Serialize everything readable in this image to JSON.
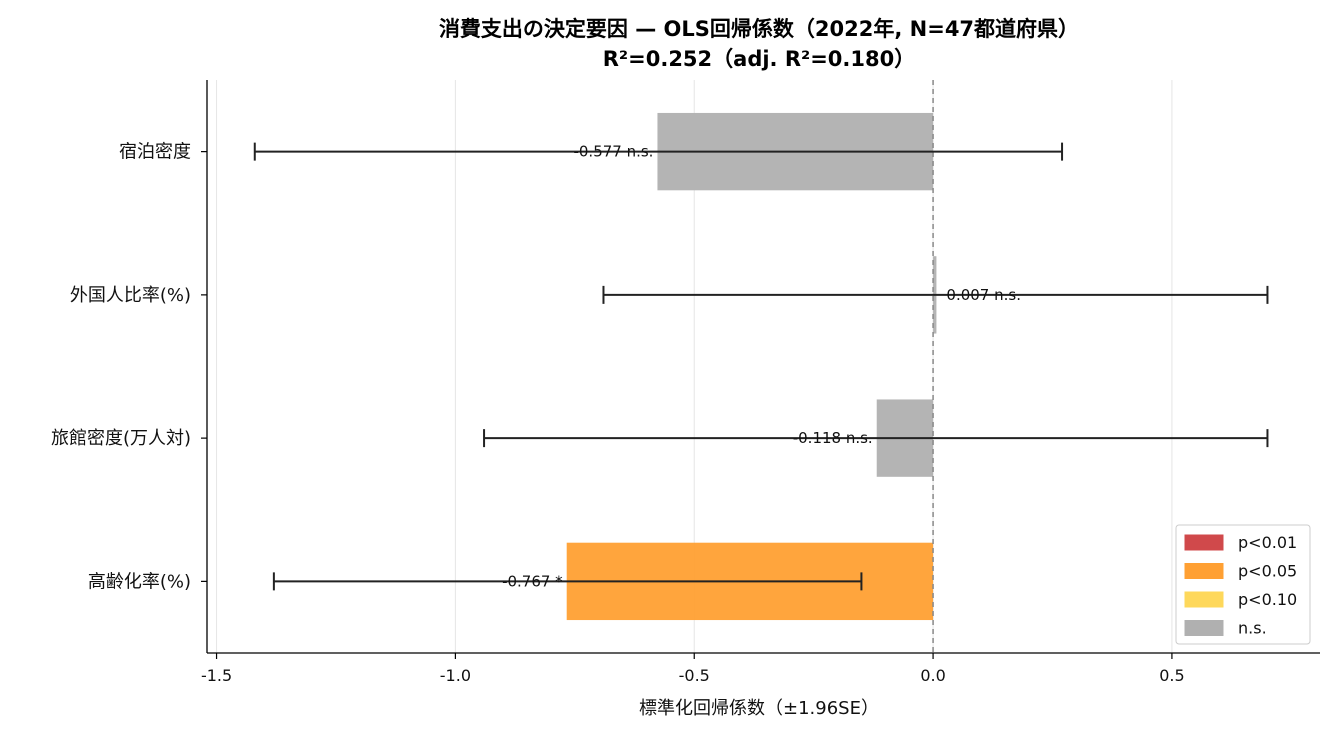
{
  "chart_data": {
    "type": "bar",
    "orientation": "horizontal",
    "title": "消費支出の決定要因 — OLS回帰係数（2022年, N=47都道府県）",
    "subtitle": "R²=0.252（adj. R²=0.180）",
    "xlabel": "標準化回帰係数（±1.96SE）",
    "xlim": [
      -1.52,
      0.81
    ],
    "xticks": [
      -1.5,
      -1.0,
      -0.5,
      0.0,
      0.5
    ],
    "xtick_labels": [
      "-1.5",
      "-1.0",
      "-0.5",
      "0.0",
      "0.5"
    ],
    "grid": "x",
    "reference_line": 0.0,
    "categories": [
      "宿泊密度",
      "外国人比率(%)",
      "旅館密度(万人対)",
      "高齢化率(%)"
    ],
    "values": [
      -0.577,
      0.007,
      -0.118,
      -0.767
    ],
    "ci_low": [
      -1.42,
      -0.69,
      -0.94,
      -1.38
    ],
    "ci_high": [
      0.27,
      0.7,
      0.7,
      -0.15
    ],
    "significance": [
      "n.s.",
      "n.s.",
      "n.s.",
      "p<0.05"
    ],
    "data_labels": [
      "-0.577 n.s.",
      "0.007 n.s.",
      "-0.118 n.s.",
      "-0.767 *"
    ],
    "legend": {
      "position": "bottom-right",
      "entries": [
        {
          "label": "p<0.01",
          "color": "#d0494b"
        },
        {
          "label": "p<0.05",
          "color": "#ffa033"
        },
        {
          "label": "p<0.10",
          "color": "#fed85b"
        },
        {
          "label": "n.s.",
          "color": "#b0b0b0"
        }
      ]
    }
  }
}
